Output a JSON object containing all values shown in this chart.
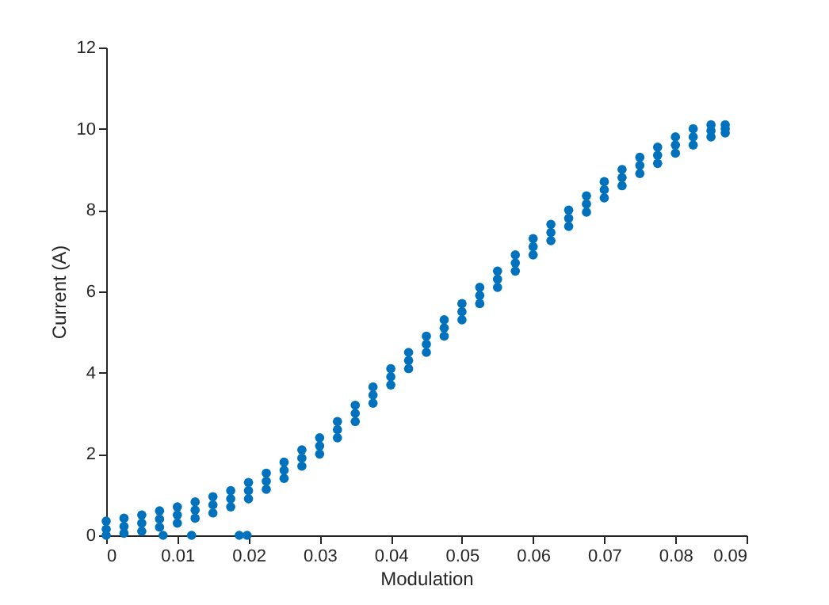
{
  "chart_data": {
    "type": "scatter",
    "xlabel": "Modulation",
    "ylabel": "Current (A)",
    "xlim": [
      0,
      0.09
    ],
    "ylim": [
      0,
      12
    ],
    "xticks": [
      0,
      0.01,
      0.02,
      0.03,
      0.04,
      0.05,
      0.06,
      0.07,
      0.08,
      0.09
    ],
    "yticks": [
      0,
      2,
      4,
      6,
      8,
      10,
      12
    ],
    "grid": false,
    "marker": "circle",
    "series": [
      {
        "color": "#0072bd",
        "x": [
          0,
          0.0025,
          0.005,
          0.0075,
          0.01,
          0.0125,
          0.015,
          0.0175,
          0.02,
          0.0225,
          0.025,
          0.0275,
          0.03,
          0.0325,
          0.035,
          0.0375,
          0.04,
          0.0425,
          0.045,
          0.0475,
          0.05,
          0.0525,
          0.055,
          0.0575,
          0.06,
          0.0625,
          0.065,
          0.0675,
          0.07,
          0.0725,
          0.075,
          0.0775,
          0.08,
          0.0825,
          0.085,
          0.087,
          0,
          0.0025,
          0.005,
          0.0075,
          0.01,
          0.0125,
          0.015,
          0.0175,
          0.02,
          0.0225,
          0.025,
          0.0275,
          0.03,
          0.0325,
          0.035,
          0.0375,
          0.04,
          0.0425,
          0.045,
          0.0475,
          0.05,
          0.0525,
          0.055,
          0.0575,
          0.06,
          0.0625,
          0.065,
          0.0675,
          0.07,
          0.0725,
          0.075,
          0.0775,
          0.08,
          0.0825,
          0.085,
          0.087,
          0,
          0.0025,
          0.005,
          0.0075,
          0.01,
          0.0125,
          0.015,
          0.0175,
          0.02,
          0.0225,
          0.025,
          0.0275,
          0.03,
          0.0325,
          0.035,
          0.0375,
          0.04,
          0.0425,
          0.045,
          0.0475,
          0.05,
          0.0525,
          0.055,
          0.0575,
          0.06,
          0.0625,
          0.065,
          0.0675,
          0.07,
          0.0725,
          0.075,
          0.0775,
          0.08,
          0.0825,
          0.085,
          0.087,
          0.008,
          0.012,
          0.0187,
          0.0198
        ],
        "values": [
          0.15,
          0.22,
          0.3,
          0.4,
          0.5,
          0.62,
          0.75,
          0.9,
          1.1,
          1.33,
          1.6,
          1.9,
          2.2,
          2.6,
          3.0,
          3.45,
          3.9,
          4.3,
          4.7,
          5.1,
          5.5,
          5.9,
          6.3,
          6.7,
          7.1,
          7.45,
          7.8,
          8.15,
          8.5,
          8.8,
          9.1,
          9.35,
          9.6,
          9.8,
          9.95,
          10.0,
          0.35,
          0.42,
          0.5,
          0.6,
          0.7,
          0.82,
          0.95,
          1.1,
          1.3,
          1.53,
          1.8,
          2.1,
          2.4,
          2.8,
          3.2,
          3.65,
          4.1,
          4.5,
          4.9,
          5.3,
          5.7,
          6.1,
          6.5,
          6.9,
          7.3,
          7.65,
          8.0,
          8.35,
          8.7,
          9.0,
          9.3,
          9.55,
          9.8,
          10.0,
          10.1,
          10.1,
          0.0,
          0.05,
          0.1,
          0.2,
          0.3,
          0.42,
          0.55,
          0.7,
          0.9,
          1.13,
          1.4,
          1.7,
          2.0,
          2.4,
          2.8,
          3.25,
          3.7,
          4.1,
          4.5,
          4.9,
          5.3,
          5.7,
          6.1,
          6.5,
          6.9,
          7.25,
          7.6,
          7.95,
          8.3,
          8.6,
          8.9,
          9.15,
          9.4,
          9.6,
          9.8,
          9.9,
          0,
          0,
          0,
          0
        ]
      }
    ]
  }
}
